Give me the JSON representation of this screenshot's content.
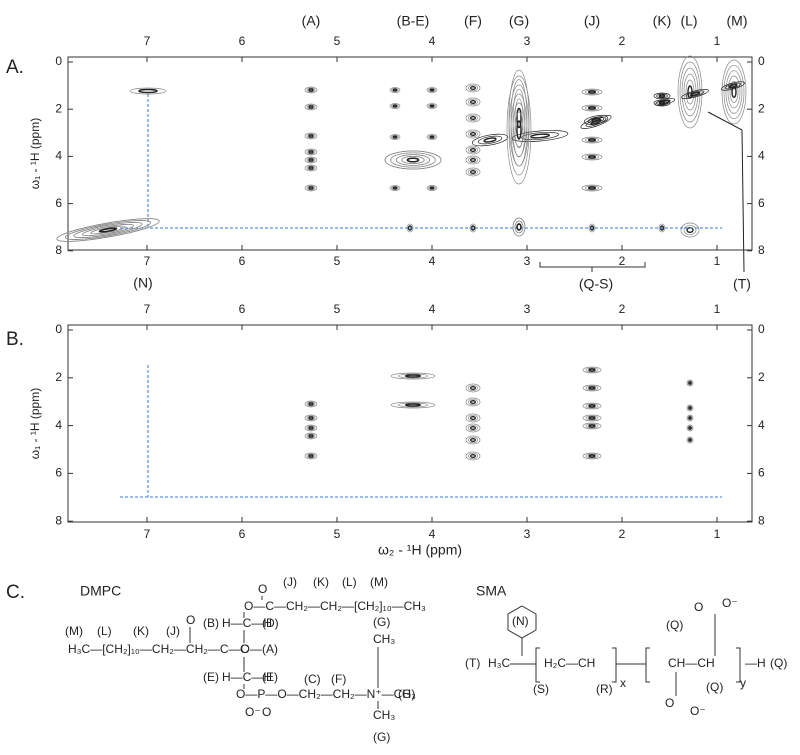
{
  "panels": [
    {
      "label": "A.",
      "xticks": [
        7,
        6,
        5,
        4,
        3,
        2,
        1
      ],
      "yticks": [
        0,
        2,
        4,
        6,
        8
      ],
      "y_label": "ω₁ - ¹H (ppm)",
      "peak_labels_top": [
        "(A)",
        "(B-E)",
        "(F)",
        "(G)",
        "(J)",
        "(K)",
        "(L)",
        "(M)"
      ],
      "peak_labels_bottom": [
        "(N)",
        "(Q-S)",
        "(T)"
      ]
    },
    {
      "label": "B.",
      "xticks": [
        7,
        6,
        5,
        4,
        3,
        2,
        1
      ],
      "yticks": [
        0,
        2,
        4,
        6,
        8
      ],
      "y_label": "ω₁ - ¹H (ppm)"
    }
  ],
  "x_label": "ω₂ - ¹H (ppm)",
  "panel_c": {
    "label": "C.",
    "dmpc": {
      "name": "DMPC",
      "texts": [
        "O",
        "O—C—CH₂—CH₂—[CH₂]₁₀—CH₃",
        "(J)",
        "(K)",
        "(L)",
        "(M)",
        "(M)",
        "(L)",
        "(K)",
        "(J)",
        "O",
        "H₃C—[CH₂]₁₀—CH₂—CH₂—C—O—",
        "C",
        "(A)",
        "(B)",
        "H—C—H",
        "(D)",
        "(E)",
        "H—C—H",
        "(E)",
        "O—P—O—CH₂—CH₂—N⁺—CH₃",
        "(G)",
        "O⁻",
        "O",
        "(C)",
        "(F)",
        "(G)",
        "CH₃",
        "CH₃",
        "(G)"
      ]
    },
    "sma": {
      "name": "SMA",
      "texts": [
        "(N)",
        "(T)",
        "H₃C",
        "H₂C—CH",
        "(S)",
        "(R)",
        "x",
        "(Q)",
        "O",
        "O⁻",
        "CH—CH",
        "—H",
        "(Q)",
        "(Q)",
        "O",
        "O⁻",
        "y"
      ]
    }
  }
}
